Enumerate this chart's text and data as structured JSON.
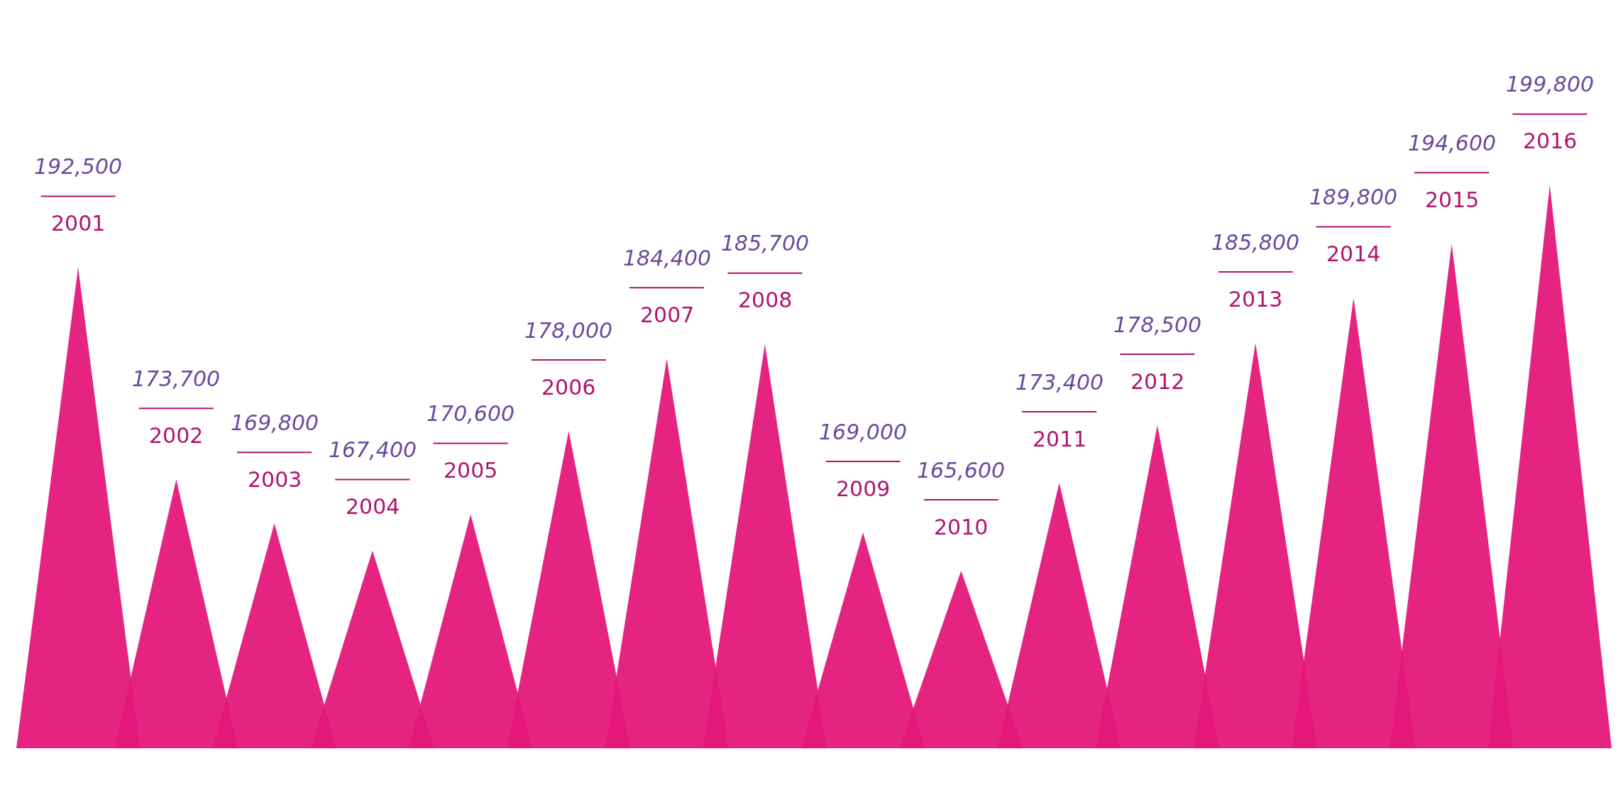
{
  "chart_data": {
    "type": "other",
    "categories": [
      "2001",
      "2002",
      "2003",
      "2004",
      "2005",
      "2006",
      "2007",
      "2008",
      "2009",
      "2010",
      "2011",
      "2012",
      "2013",
      "2014",
      "2015",
      "2016"
    ],
    "values": [
      192500,
      173700,
      169800,
      167400,
      170600,
      178000,
      184400,
      185700,
      169000,
      165600,
      173400,
      178500,
      185800,
      189800,
      194600,
      199800
    ],
    "value_labels": [
      "192,500",
      "173,700",
      "169,800",
      "167,400",
      "170,600",
      "178,000",
      "184,400",
      "185,700",
      "169,000",
      "165,600",
      "173,400",
      "178,500",
      "185,800",
      "189,800",
      "194,600",
      "199,800"
    ],
    "color": "#e4187a"
  }
}
